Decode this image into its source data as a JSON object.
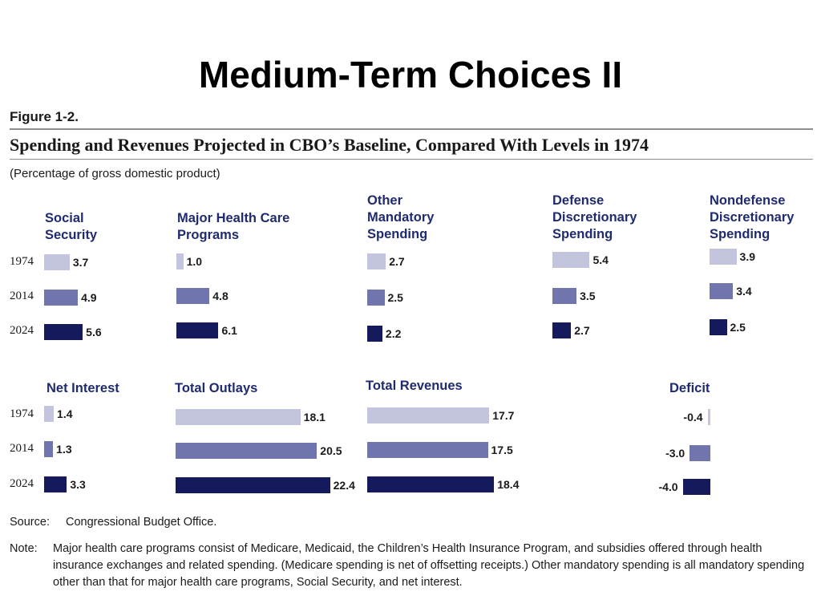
{
  "slide_title": "Medium-Term Choices II",
  "figure_label": "Figure 1-2.",
  "figure_title": "Spending and Revenues Projected in CBO’s Baseline, Compared With Levels in 1974",
  "unit_note": "(Percentage of gross domestic product)",
  "source_key": "Source:",
  "source_text": "Congressional Budget Office.",
  "note_key": "Note:",
  "note_text": "Major health care programs consist of Medicare, Medicaid, the Children’s Health Insurance Program, and subsidies offered through health insurance exchanges and related spending. (Medicare spending is net of offsetting receipts.) Other mandatory spending is all mandatory spending other than that for major health care programs, Social Security, and net interest.",
  "colors": {
    "1974": "#c3c4de",
    "2014": "#7076ad",
    "2024": "#141a5c",
    "panel_title": "#1f2b6e"
  },
  "chart_data": [
    {
      "type": "bar",
      "title": "Social\nSecurity",
      "categories": [
        "1974",
        "2014",
        "2024"
      ],
      "values": [
        3.7,
        4.9,
        5.6
      ],
      "labels": [
        "3.7",
        "4.9",
        "5.6"
      ]
    },
    {
      "type": "bar",
      "title": "Major Health Care\nPrograms",
      "categories": [
        "1974",
        "2014",
        "2024"
      ],
      "values": [
        1.0,
        4.8,
        6.1
      ],
      "labels": [
        "1.0",
        "4.8",
        "6.1"
      ]
    },
    {
      "type": "bar",
      "title": "Other\nMandatory\nSpending",
      "categories": [
        "1974",
        "2014",
        "2024"
      ],
      "values": [
        2.7,
        2.5,
        2.2
      ],
      "labels": [
        "2.7",
        "2.5",
        "2.2"
      ]
    },
    {
      "type": "bar",
      "title": "Defense\nDiscretionary\nSpending",
      "categories": [
        "1974",
        "2014",
        "2024"
      ],
      "values": [
        5.4,
        3.5,
        2.7
      ],
      "labels": [
        "5.4",
        "3.5",
        "2.7"
      ]
    },
    {
      "type": "bar",
      "title": "Nondefense\nDiscretionary\nSpending",
      "categories": [
        "1974",
        "2014",
        "2024"
      ],
      "values": [
        3.9,
        3.4,
        2.5
      ],
      "labels": [
        "3.9",
        "3.4",
        "2.5"
      ]
    },
    {
      "type": "bar",
      "title": "Net Interest",
      "categories": [
        "1974",
        "2014",
        "2024"
      ],
      "values": [
        1.4,
        1.3,
        3.3
      ],
      "labels": [
        "1.4",
        "1.3",
        "3.3"
      ]
    },
    {
      "type": "bar",
      "title": "Total Outlays",
      "categories": [
        "1974",
        "2014",
        "2024"
      ],
      "values": [
        18.1,
        20.5,
        22.4
      ],
      "labels": [
        "18.1",
        "20.5",
        "22.4"
      ]
    },
    {
      "type": "bar",
      "title": "Total Revenues",
      "categories": [
        "1974",
        "2014",
        "2024"
      ],
      "values": [
        17.7,
        17.5,
        18.4
      ],
      "labels": [
        "17.7",
        "17.5",
        "18.4"
      ]
    },
    {
      "type": "bar",
      "title": "Deficit",
      "categories": [
        "1974",
        "2014",
        "2024"
      ],
      "values": [
        -0.4,
        -3.0,
        -4.0
      ],
      "labels": [
        "-0.4",
        "-3.0",
        "-4.0"
      ]
    }
  ],
  "row_years": [
    [
      "1974",
      "2014",
      "2024"
    ],
    [
      "1974",
      "2014",
      "2024"
    ]
  ]
}
